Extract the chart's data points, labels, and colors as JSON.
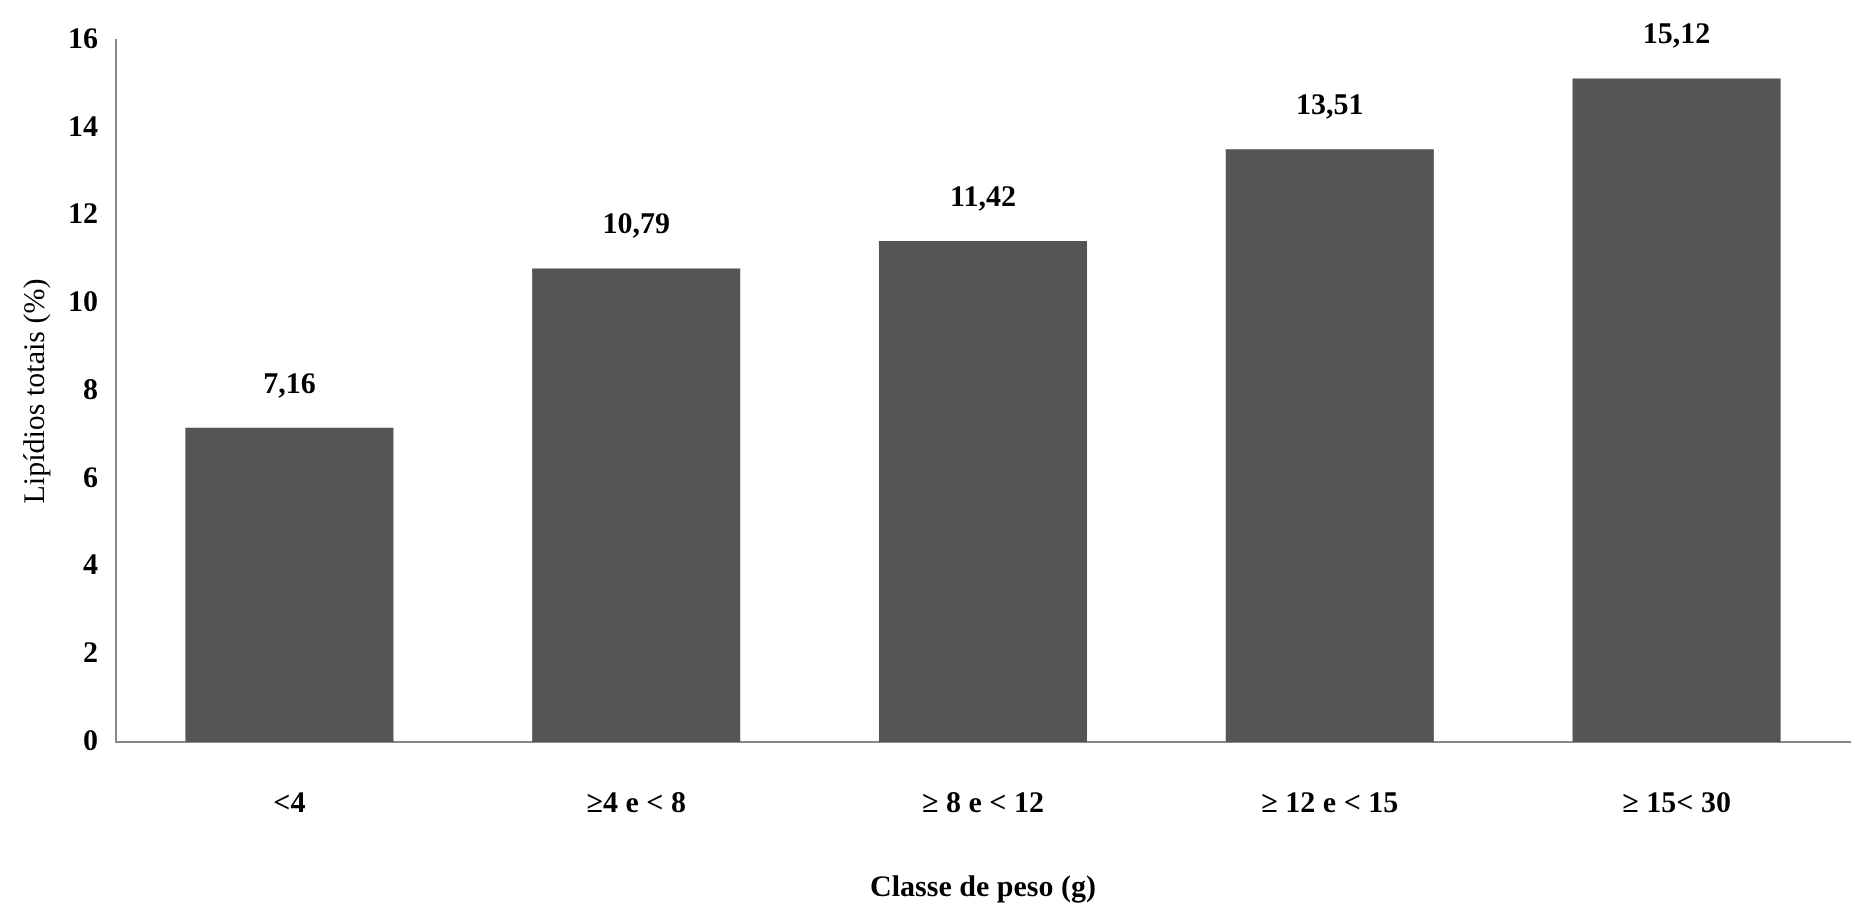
{
  "chart_data": {
    "type": "bar",
    "xlabel": "Classe de peso (g)",
    "ylabel": "Lipídios totais (%)",
    "categories": [
      "<4",
      "≥4 e < 8",
      "≥ 8 e < 12",
      "≥ 12 e < 15",
      "≥ 15< 30"
    ],
    "values": [
      7.16,
      10.79,
      11.42,
      13.51,
      15.12
    ],
    "value_labels": [
      "7,16",
      "10,79",
      "11,42",
      "13,51",
      "15,12"
    ],
    "color": "#555555",
    "ylim": [
      0,
      16
    ],
    "yticks": [
      0,
      2,
      4,
      6,
      8,
      10,
      12,
      14,
      16
    ],
    "grid": false,
    "legend": false
  }
}
